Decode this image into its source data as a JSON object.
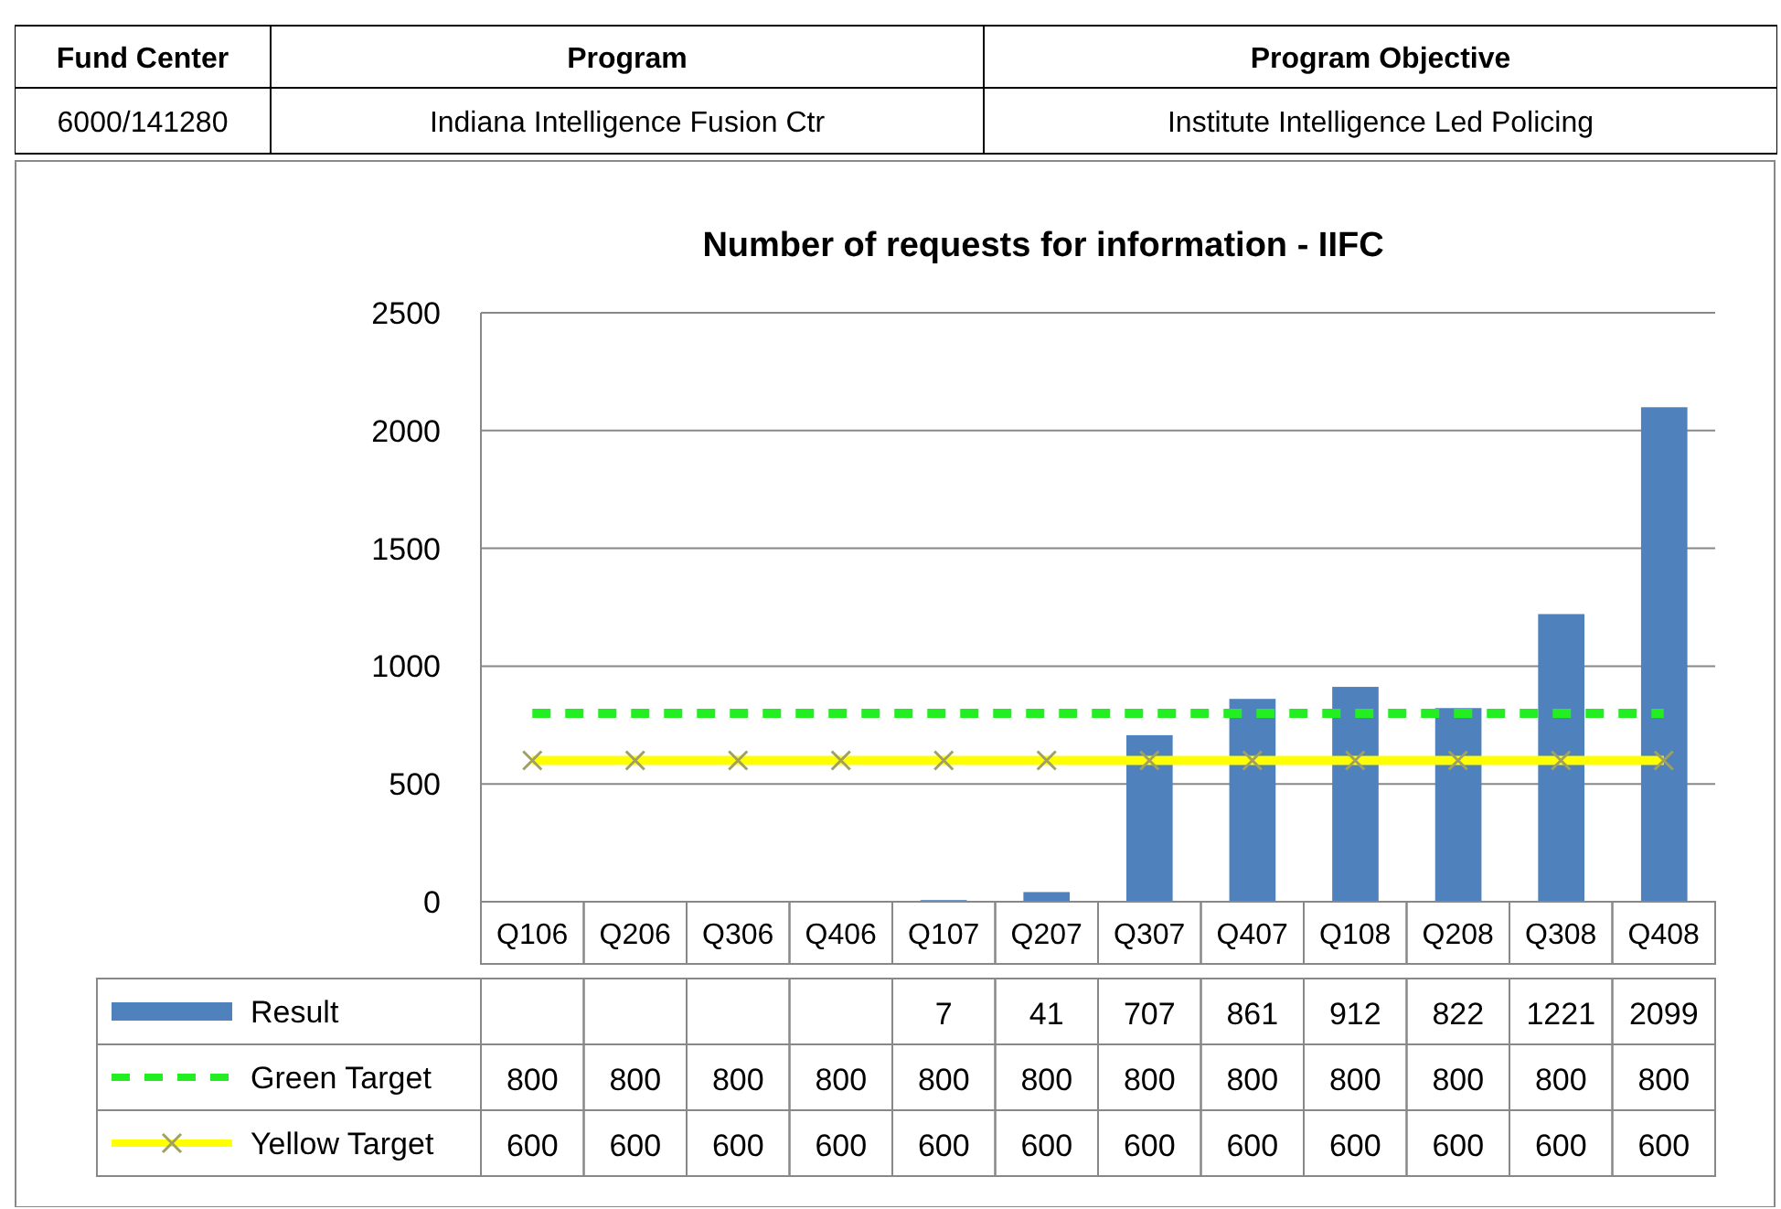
{
  "chart_data": {
    "type": "bar",
    "title": "Number of requests for information - IIFC",
    "annotations": [
      "Fund Center",
      "Program",
      "Program Objective",
      "6000/141280",
      "Indiana Intelligence Fusion Ctr",
      "Institute Intelligence Led Policing"
    ],
    "categories": [
      "Q106",
      "Q206",
      "Q306",
      "Q406",
      "Q107",
      "Q207",
      "Q307",
      "Q407",
      "Q108",
      "Q208",
      "Q308",
      "Q408"
    ],
    "series": [
      {
        "name": "Result",
        "color": "#4f81bd",
        "values": [
          null,
          null,
          null,
          null,
          7,
          41,
          707,
          861,
          912,
          822,
          1221,
          2099
        ]
      },
      {
        "name": "Green Target",
        "type": "line",
        "color": "#22ee22",
        "line_style": "dashed",
        "marker": "none",
        "values": [
          800,
          800,
          800,
          800,
          800,
          800,
          800,
          800,
          800,
          800,
          800,
          800
        ]
      },
      {
        "name": "Yellow Target",
        "type": "line",
        "color": "#ffff00",
        "line_style": "solid",
        "marker": "cross",
        "values": [
          600,
          600,
          600,
          600,
          600,
          600,
          600,
          600,
          600,
          600,
          600,
          600
        ]
      }
    ],
    "ylim": [
      0,
      2500
    ],
    "yticks": [
      0,
      500,
      1000,
      1500,
      2000,
      2500
    ],
    "grid": "y",
    "legend": "bottom",
    "data_labels": true
  }
}
